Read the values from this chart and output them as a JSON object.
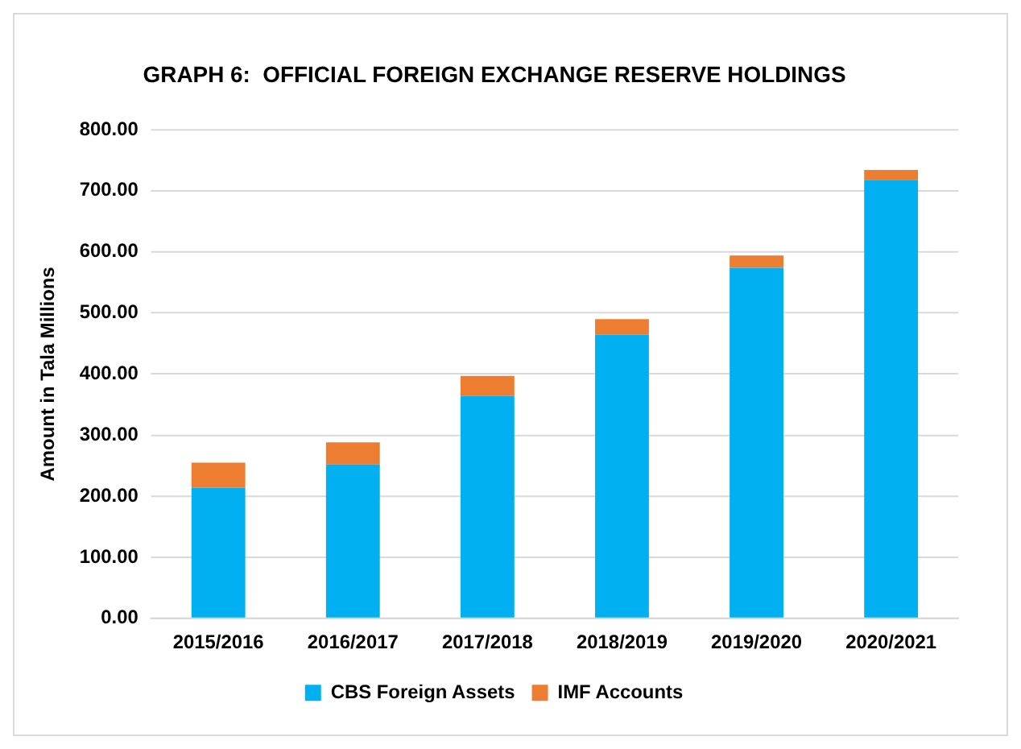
{
  "chart_data": {
    "type": "bar",
    "title": "GRAPH 6:  OFFICIAL FOREIGN EXCHANGE RESERVE HOLDINGS",
    "ylabel": "Amount in Tala Millions",
    "categories": [
      "2015/2016",
      "2016/2017",
      "2017/2018",
      "2018/2019",
      "2019/2020",
      "2020/2021"
    ],
    "stacked": true,
    "series": [
      {
        "name": "CBS Foreign Assets",
        "color": "#00b0f0",
        "values": [
          214,
          252,
          364,
          464,
          574,
          718
        ]
      },
      {
        "name": "IMF Accounts",
        "color": "#ed7d31",
        "values": [
          41,
          36,
          33,
          26,
          20,
          16
        ]
      }
    ],
    "ylim": [
      0,
      800
    ],
    "yticks": [
      {
        "value": 0,
        "label": "0.00"
      },
      {
        "value": 100,
        "label": "100.00"
      },
      {
        "value": 200,
        "label": "200.00"
      },
      {
        "value": 300,
        "label": "300.00"
      },
      {
        "value": 400,
        "label": "400.00"
      },
      {
        "value": 500,
        "label": "500.00"
      },
      {
        "value": 600,
        "label": "600.00"
      },
      {
        "value": 700,
        "label": "700.00"
      },
      {
        "value": 800,
        "label": "800.00"
      }
    ],
    "grid": "y",
    "legend": "bottom"
  }
}
